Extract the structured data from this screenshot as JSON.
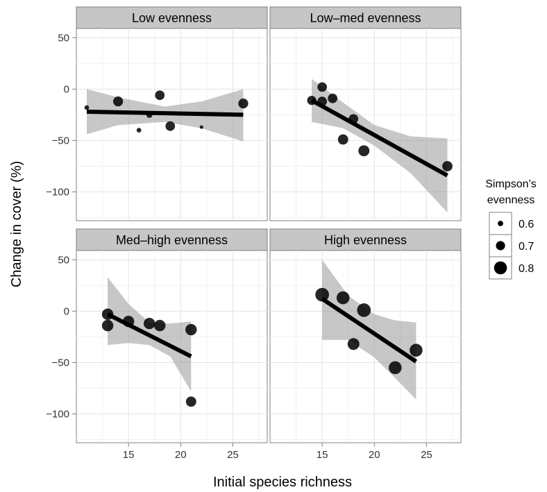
{
  "chart_data": {
    "type": "scatter",
    "xlabel": "Initial species richness",
    "ylabel": "Change in cover (%)",
    "xlim": [
      10,
      28.3
    ],
    "ylim": [
      -128,
      59
    ],
    "x_ticks": [
      15,
      20,
      25
    ],
    "y_ticks": [
      50,
      0,
      -50,
      -100
    ],
    "x_tick_labels": [
      "15",
      "20",
      "25"
    ],
    "y_tick_labels": [
      "50",
      "0",
      "−50",
      "−100"
    ],
    "grid": true,
    "legend": {
      "title_lines": [
        "Simpson’s",
        "evenness"
      ],
      "position": "right",
      "entries": [
        {
          "label": "0.6",
          "value": 0.6
        },
        {
          "label": "0.7",
          "value": 0.7
        },
        {
          "label": "0.8",
          "value": 0.8
        }
      ]
    },
    "panels": [
      {
        "title": "Low evenness",
        "points": [
          {
            "x": 11,
            "y": -18,
            "evenness": 0.58
          },
          {
            "x": 14,
            "y": -12,
            "evenness": 0.72
          },
          {
            "x": 16,
            "y": -40,
            "evenness": 0.58
          },
          {
            "x": 17,
            "y": -25,
            "evenness": 0.62
          },
          {
            "x": 18,
            "y": -6,
            "evenness": 0.71
          },
          {
            "x": 19,
            "y": -36,
            "evenness": 0.71
          },
          {
            "x": 22,
            "y": -37,
            "evenness": 0.55
          },
          {
            "x": 26,
            "y": -14,
            "evenness": 0.72
          }
        ],
        "fit": {
          "x": [
            11,
            26
          ],
          "y": [
            -22,
            -25
          ]
        },
        "band": {
          "x": [
            11,
            14,
            18.5,
            22,
            26
          ],
          "lower": [
            -44,
            -35,
            -32,
            -38,
            -51
          ],
          "upper": [
            0,
            -8,
            -17,
            -12,
            0
          ]
        }
      },
      {
        "title": "Low–med evenness",
        "points": [
          {
            "x": 14,
            "y": -11,
            "evenness": 0.7
          },
          {
            "x": 15,
            "y": 2,
            "evenness": 0.71
          },
          {
            "x": 15,
            "y": -12,
            "evenness": 0.71
          },
          {
            "x": 16,
            "y": -9,
            "evenness": 0.71
          },
          {
            "x": 17,
            "y": -49,
            "evenness": 0.73
          },
          {
            "x": 18,
            "y": -29,
            "evenness": 0.71
          },
          {
            "x": 19,
            "y": -60,
            "evenness": 0.75
          },
          {
            "x": 27,
            "y": -75,
            "evenness": 0.73
          }
        ],
        "fit": {
          "x": [
            14,
            27
          ],
          "y": [
            -11,
            -84
          ]
        },
        "band": {
          "x": [
            14,
            17,
            20,
            23.5,
            27
          ],
          "lower": [
            -32,
            -38,
            -55,
            -82,
            -120
          ],
          "upper": [
            10,
            -13,
            -35,
            -46,
            -48
          ]
        }
      },
      {
        "title": "Med–high evenness",
        "points": [
          {
            "x": 13,
            "y": -3,
            "evenness": 0.76
          },
          {
            "x": 13,
            "y": -14,
            "evenness": 0.76
          },
          {
            "x": 15,
            "y": -10,
            "evenness": 0.76
          },
          {
            "x": 17,
            "y": -12,
            "evenness": 0.76
          },
          {
            "x": 18,
            "y": -14,
            "evenness": 0.76
          },
          {
            "x": 21,
            "y": -18,
            "evenness": 0.76
          },
          {
            "x": 21,
            "y": -88,
            "evenness": 0.73
          }
        ],
        "fit": {
          "x": [
            13,
            21
          ],
          "y": [
            -3,
            -44
          ]
        },
        "band": {
          "x": [
            13,
            15,
            17,
            19,
            21
          ],
          "lower": [
            -33,
            -31,
            -33,
            -44,
            -78
          ],
          "upper": [
            33,
            7,
            -11,
            -12,
            -10
          ]
        }
      },
      {
        "title": "High evenness",
        "points": [
          {
            "x": 15,
            "y": 16,
            "evenness": 0.82
          },
          {
            "x": 17,
            "y": 13,
            "evenness": 0.8
          },
          {
            "x": 18,
            "y": -32,
            "evenness": 0.77
          },
          {
            "x": 19,
            "y": 1,
            "evenness": 0.82
          },
          {
            "x": 22,
            "y": -55,
            "evenness": 0.8
          },
          {
            "x": 24,
            "y": -38,
            "evenness": 0.8
          }
        ],
        "fit": {
          "x": [
            15,
            24
          ],
          "y": [
            12,
            -49
          ]
        },
        "band": {
          "x": [
            15,
            17.5,
            20,
            22,
            24
          ],
          "lower": [
            -28,
            -28,
            -45,
            -65,
            -86
          ],
          "upper": [
            50,
            15,
            -3,
            -9,
            -11
          ]
        }
      }
    ]
  }
}
